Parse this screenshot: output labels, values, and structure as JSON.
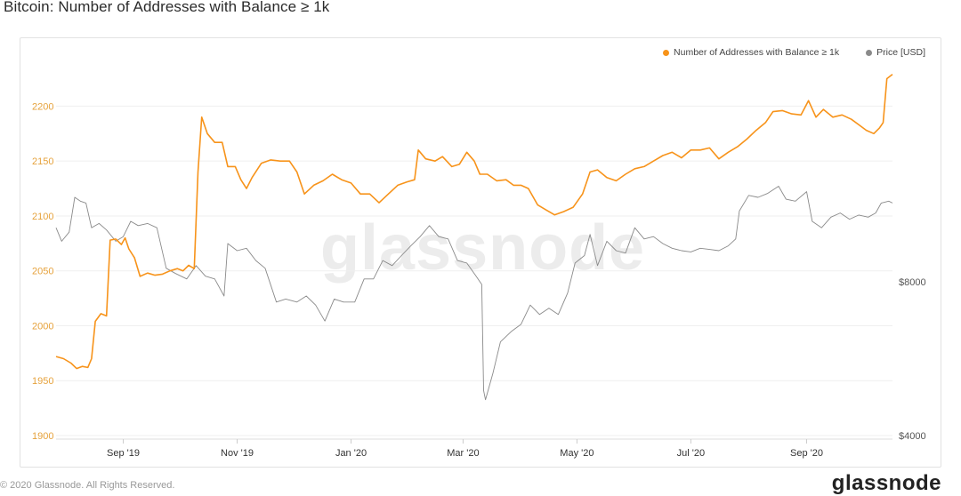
{
  "page": {
    "title": "Bitcoin: Number of Addresses with Balance ≥ 1k",
    "watermark": "glassnode",
    "footer_copyright": "© 2020 Glassnode. All Rights Reserved.",
    "footer_logo": "glassnode"
  },
  "colors": {
    "addresses": "#f7931a",
    "price": "#8a8a8a",
    "left_axis": "#e6a23c",
    "right_axis": "#555555"
  },
  "chart_data": {
    "type": "line",
    "title": "Bitcoin: Number of Addresses with Balance ≥ 1k",
    "x_ticks": [
      "Sep '19",
      "Nov '19",
      "Jan '20",
      "Mar '20",
      "May '20",
      "Jul '20",
      "Sep '20"
    ],
    "x_range": [
      "2019-07-27",
      "2020-10-17"
    ],
    "y_left": {
      "ticks": [
        1900,
        1950,
        2000,
        2050,
        2100,
        2150,
        2200
      ],
      "range": [
        1900,
        2240
      ]
    },
    "y_right": {
      "ticks": [
        "$4000",
        "$8000"
      ],
      "scale": "log",
      "range": [
        4000,
        21500
      ]
    },
    "legend_position": "top-right",
    "grid": true,
    "series": [
      {
        "name": "Number of Addresses with Balance ≥ 1k",
        "axis": "left",
        "points": [
          [
            "2019-07-27",
            1972
          ],
          [
            "2019-07-31",
            1970
          ],
          [
            "2019-08-04",
            1966
          ],
          [
            "2019-08-07",
            1961
          ],
          [
            "2019-08-10",
            1963
          ],
          [
            "2019-08-13",
            1962
          ],
          [
            "2019-08-15",
            1970
          ],
          [
            "2019-08-17",
            2004
          ],
          [
            "2019-08-20",
            2011
          ],
          [
            "2019-08-23",
            2009
          ],
          [
            "2019-08-25",
            2078
          ],
          [
            "2019-08-28",
            2079
          ],
          [
            "2019-08-31",
            2074
          ],
          [
            "2019-09-02",
            2080
          ],
          [
            "2019-09-04",
            2070
          ],
          [
            "2019-09-07",
            2062
          ],
          [
            "2019-09-10",
            2045
          ],
          [
            "2019-09-14",
            2048
          ],
          [
            "2019-09-18",
            2046
          ],
          [
            "2019-09-22",
            2047
          ],
          [
            "2019-09-26",
            2050
          ],
          [
            "2019-09-30",
            2052
          ],
          [
            "2019-10-03",
            2050
          ],
          [
            "2019-10-06",
            2055
          ],
          [
            "2019-10-09",
            2052
          ],
          [
            "2019-10-11",
            2140
          ],
          [
            "2019-10-13",
            2190
          ],
          [
            "2019-10-16",
            2175
          ],
          [
            "2019-10-20",
            2167
          ],
          [
            "2019-10-24",
            2167
          ],
          [
            "2019-10-27",
            2145
          ],
          [
            "2019-10-31",
            2145
          ],
          [
            "2019-11-03",
            2133
          ],
          [
            "2019-11-06",
            2125
          ],
          [
            "2019-11-09",
            2135
          ],
          [
            "2019-11-14",
            2148
          ],
          [
            "2019-11-19",
            2151
          ],
          [
            "2019-11-24",
            2150
          ],
          [
            "2019-11-29",
            2150
          ],
          [
            "2019-12-03",
            2140
          ],
          [
            "2019-12-07",
            2120
          ],
          [
            "2019-12-12",
            2128
          ],
          [
            "2019-12-17",
            2132
          ],
          [
            "2019-12-22",
            2138
          ],
          [
            "2019-12-27",
            2133
          ],
          [
            "2020-01-01",
            2130
          ],
          [
            "2020-01-06",
            2120
          ],
          [
            "2020-01-11",
            2120
          ],
          [
            "2020-01-16",
            2112
          ],
          [
            "2020-01-21",
            2120
          ],
          [
            "2020-01-26",
            2128
          ],
          [
            "2020-01-31",
            2131
          ],
          [
            "2020-02-04",
            2133
          ],
          [
            "2020-02-06",
            2160
          ],
          [
            "2020-02-10",
            2152
          ],
          [
            "2020-02-15",
            2150
          ],
          [
            "2020-02-19",
            2154
          ],
          [
            "2020-02-24",
            2145
          ],
          [
            "2020-02-28",
            2147
          ],
          [
            "2020-03-03",
            2158
          ],
          [
            "2020-03-07",
            2150
          ],
          [
            "2020-03-10",
            2138
          ],
          [
            "2020-03-14",
            2138
          ],
          [
            "2020-03-19",
            2132
          ],
          [
            "2020-03-24",
            2133
          ],
          [
            "2020-03-28",
            2128
          ],
          [
            "2020-04-01",
            2128
          ],
          [
            "2020-04-05",
            2125
          ],
          [
            "2020-04-10",
            2110
          ],
          [
            "2020-04-15",
            2105
          ],
          [
            "2020-04-19",
            2101
          ],
          [
            "2020-04-24",
            2104
          ],
          [
            "2020-04-29",
            2108
          ],
          [
            "2020-05-04",
            2120
          ],
          [
            "2020-05-08",
            2140
          ],
          [
            "2020-05-12",
            2142
          ],
          [
            "2020-05-17",
            2135
          ],
          [
            "2020-05-22",
            2132
          ],
          [
            "2020-05-27",
            2138
          ],
          [
            "2020-06-01",
            2143
          ],
          [
            "2020-06-06",
            2145
          ],
          [
            "2020-06-11",
            2150
          ],
          [
            "2020-06-16",
            2155
          ],
          [
            "2020-06-21",
            2158
          ],
          [
            "2020-06-26",
            2153
          ],
          [
            "2020-07-01",
            2160
          ],
          [
            "2020-07-06",
            2160
          ],
          [
            "2020-07-11",
            2162
          ],
          [
            "2020-07-16",
            2152
          ],
          [
            "2020-07-21",
            2158
          ],
          [
            "2020-07-26",
            2163
          ],
          [
            "2020-07-31",
            2170
          ],
          [
            "2020-08-05",
            2178
          ],
          [
            "2020-08-10",
            2185
          ],
          [
            "2020-08-14",
            2195
          ],
          [
            "2020-08-19",
            2196
          ],
          [
            "2020-08-24",
            2193
          ],
          [
            "2020-08-29",
            2192
          ],
          [
            "2020-09-02",
            2205
          ],
          [
            "2020-09-06",
            2190
          ],
          [
            "2020-09-10",
            2197
          ],
          [
            "2020-09-15",
            2190
          ],
          [
            "2020-09-20",
            2192
          ],
          [
            "2020-09-25",
            2188
          ],
          [
            "2020-09-29",
            2183
          ],
          [
            "2020-10-03",
            2178
          ],
          [
            "2020-10-07",
            2175
          ],
          [
            "2020-10-10",
            2180
          ],
          [
            "2020-10-12",
            2185
          ],
          [
            "2020-10-14",
            2225
          ],
          [
            "2020-10-17",
            2229
          ]
        ]
      },
      {
        "name": "Price [USD]",
        "axis": "right",
        "points": [
          [
            "2019-07-27",
            10200
          ],
          [
            "2019-07-30",
            9600
          ],
          [
            "2019-08-03",
            10000
          ],
          [
            "2019-08-06",
            11700
          ],
          [
            "2019-08-09",
            11500
          ],
          [
            "2019-08-12",
            11400
          ],
          [
            "2019-08-15",
            10200
          ],
          [
            "2019-08-19",
            10400
          ],
          [
            "2019-08-23",
            10100
          ],
          [
            "2019-08-28",
            9600
          ],
          [
            "2019-09-01",
            9800
          ],
          [
            "2019-09-05",
            10500
          ],
          [
            "2019-09-09",
            10300
          ],
          [
            "2019-09-14",
            10400
          ],
          [
            "2019-09-19",
            10200
          ],
          [
            "2019-09-24",
            8500
          ],
          [
            "2019-09-29",
            8300
          ],
          [
            "2019-10-05",
            8100
          ],
          [
            "2019-10-10",
            8600
          ],
          [
            "2019-10-15",
            8200
          ],
          [
            "2019-10-20",
            8100
          ],
          [
            "2019-10-25",
            7500
          ],
          [
            "2019-10-27",
            9500
          ],
          [
            "2019-11-01",
            9200
          ],
          [
            "2019-11-06",
            9300
          ],
          [
            "2019-11-11",
            8800
          ],
          [
            "2019-11-16",
            8500
          ],
          [
            "2019-11-22",
            7300
          ],
          [
            "2019-11-27",
            7400
          ],
          [
            "2019-12-03",
            7300
          ],
          [
            "2019-12-08",
            7500
          ],
          [
            "2019-12-13",
            7200
          ],
          [
            "2019-12-18",
            6700
          ],
          [
            "2019-12-23",
            7400
          ],
          [
            "2019-12-28",
            7300
          ],
          [
            "2020-01-03",
            7300
          ],
          [
            "2020-01-08",
            8100
          ],
          [
            "2020-01-13",
            8100
          ],
          [
            "2020-01-18",
            8800
          ],
          [
            "2020-01-23",
            8600
          ],
          [
            "2020-01-28",
            9000
          ],
          [
            "2020-02-02",
            9400
          ],
          [
            "2020-02-07",
            9800
          ],
          [
            "2020-02-12",
            10300
          ],
          [
            "2020-02-17",
            9800
          ],
          [
            "2020-02-22",
            9700
          ],
          [
            "2020-02-27",
            8800
          ],
          [
            "2020-03-03",
            8700
          ],
          [
            "2020-03-08",
            8200
          ],
          [
            "2020-03-11",
            7900
          ],
          [
            "2020-03-12",
            4900
          ],
          [
            "2020-03-13",
            4700
          ],
          [
            "2020-03-17",
            5300
          ],
          [
            "2020-03-21",
            6100
          ],
          [
            "2020-03-27",
            6400
          ],
          [
            "2020-04-01",
            6600
          ],
          [
            "2020-04-06",
            7200
          ],
          [
            "2020-04-11",
            6900
          ],
          [
            "2020-04-16",
            7100
          ],
          [
            "2020-04-21",
            6900
          ],
          [
            "2020-04-26",
            7600
          ],
          [
            "2020-04-30",
            8700
          ],
          [
            "2020-05-05",
            9000
          ],
          [
            "2020-05-08",
            9900
          ],
          [
            "2020-05-12",
            8600
          ],
          [
            "2020-05-17",
            9600
          ],
          [
            "2020-05-22",
            9200
          ],
          [
            "2020-05-27",
            9100
          ],
          [
            "2020-06-01",
            10200
          ],
          [
            "2020-06-06",
            9700
          ],
          [
            "2020-06-11",
            9800
          ],
          [
            "2020-06-16",
            9500
          ],
          [
            "2020-06-21",
            9300
          ],
          [
            "2020-06-26",
            9200
          ],
          [
            "2020-07-01",
            9150
          ],
          [
            "2020-07-06",
            9300
          ],
          [
            "2020-07-11",
            9250
          ],
          [
            "2020-07-16",
            9200
          ],
          [
            "2020-07-21",
            9400
          ],
          [
            "2020-07-25",
            9700
          ],
          [
            "2020-07-27",
            11000
          ],
          [
            "2020-08-01",
            11800
          ],
          [
            "2020-08-06",
            11700
          ],
          [
            "2020-08-11",
            11900
          ],
          [
            "2020-08-17",
            12300
          ],
          [
            "2020-08-21",
            11600
          ],
          [
            "2020-08-26",
            11500
          ],
          [
            "2020-09-01",
            12000
          ],
          [
            "2020-09-04",
            10500
          ],
          [
            "2020-09-09",
            10200
          ],
          [
            "2020-09-14",
            10700
          ],
          [
            "2020-09-19",
            10900
          ],
          [
            "2020-09-24",
            10600
          ],
          [
            "2020-09-29",
            10800
          ],
          [
            "2020-10-04",
            10700
          ],
          [
            "2020-10-08",
            10900
          ],
          [
            "2020-10-11",
            11400
          ],
          [
            "2020-10-15",
            11500
          ],
          [
            "2020-10-17",
            11400
          ]
        ]
      }
    ]
  }
}
